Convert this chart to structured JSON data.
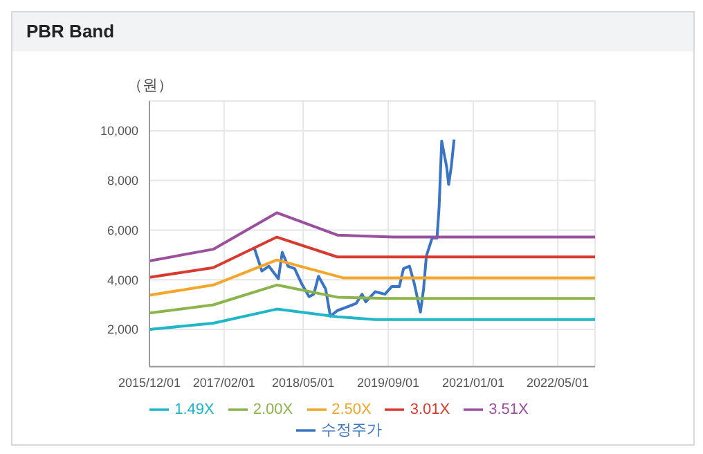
{
  "chart_data": {
    "type": "line",
    "title": "PBR Band",
    "ylabel": "（원）",
    "xlim": [
      "2015-12-01",
      "2022-12-01"
    ],
    "xticks": [
      {
        "value": "2015-12-01",
        "label": "2015/12/01"
      },
      {
        "value": "2017-02-01",
        "label": "2017/02/01"
      },
      {
        "value": "2018-05-01",
        "label": "2018/05/01"
      },
      {
        "value": "2019-09-01",
        "label": "2019/09/01"
      },
      {
        "value": "2021-01-01",
        "label": "2021/01/01"
      },
      {
        "value": "2022-05-01",
        "label": "2022/05/01"
      }
    ],
    "ylim": [
      500,
      11200
    ],
    "yticks": [
      {
        "value": 2000,
        "label": "2,000"
      },
      {
        "value": 4000,
        "label": "4,000"
      },
      {
        "value": 6000,
        "label": "6,000"
      },
      {
        "value": 8000,
        "label": "8,000"
      },
      {
        "value": 10000,
        "label": "10,000"
      }
    ],
    "grid": true,
    "legend": "bottom",
    "marker": "none",
    "line_style": "solid",
    "series": [
      {
        "name": "수정주가",
        "color": "#3a74c4",
        "x": [
          "2017-07-25",
          "2017-09-06",
          "2017-10-16",
          "2017-12-10",
          "2018-01-01",
          "2018-02-03",
          "2018-03-13",
          "2018-04-23",
          "2018-06-04",
          "2018-07-01",
          "2018-07-28",
          "2018-09-07",
          "2018-10-04",
          "2018-11-13",
          "2019-01-07",
          "2019-03-01",
          "2019-04-04",
          "2019-04-25",
          "2019-06-19",
          "2019-08-13",
          "2019-09-22",
          "2019-11-04",
          "2019-11-28",
          "2020-01-01",
          "2020-01-28",
          "2020-03-04",
          "2020-03-22",
          "2020-04-07",
          "2020-05-10",
          "2020-06-07",
          "2020-06-19",
          "2020-07-04",
          "2020-08-01",
          "2020-08-13",
          "2020-08-28",
          "2020-09-13"
        ],
        "values": [
          5270,
          4350,
          4550,
          4040,
          5110,
          4550,
          4450,
          3830,
          3320,
          3420,
          4140,
          3630,
          2530,
          2760,
          2900,
          3050,
          3420,
          3110,
          3520,
          3420,
          3730,
          3730,
          4450,
          4550,
          3870,
          2700,
          3630,
          4960,
          5680,
          5680,
          6920,
          9590,
          8560,
          7840,
          8560,
          9650
        ]
      },
      {
        "name": "1.49X",
        "color": "#1fb6c8",
        "x": [
          "2015-12-01",
          "2016-12-01",
          "2017-12-01",
          "2018-11-13",
          "2019-06-19",
          "2022-12-01"
        ],
        "values": [
          2000,
          2250,
          2820,
          2510,
          2400,
          2400
        ]
      },
      {
        "name": "2.00X",
        "color": "#8bb54b",
        "x": [
          "2015-12-01",
          "2016-12-01",
          "2017-12-01",
          "2018-11-13",
          "2019-09-01",
          "2022-12-01"
        ],
        "values": [
          2660,
          2990,
          3790,
          3300,
          3250,
          3250
        ]
      },
      {
        "name": "2.50X",
        "color": "#f4a62a",
        "x": [
          "2015-12-01",
          "2016-12-01",
          "2017-12-01",
          "2018-12-15",
          "2019-09-01",
          "2022-12-01"
        ],
        "values": [
          3380,
          3790,
          4800,
          4080,
          4080,
          4080
        ]
      },
      {
        "name": "3.01X",
        "color": "#d93a2f",
        "x": [
          "2015-12-01",
          "2016-12-01",
          "2017-12-01",
          "2018-11-13",
          "2019-09-01",
          "2022-12-01"
        ],
        "values": [
          4100,
          4490,
          5720,
          4920,
          4920,
          4920
        ]
      },
      {
        "name": "3.51X",
        "color": "#9a4f9f",
        "x": [
          "2015-12-01",
          "2016-12-01",
          "2017-12-01",
          "2018-11-13",
          "2019-10-01",
          "2022-12-01"
        ],
        "values": [
          4760,
          5230,
          6700,
          5800,
          5720,
          5720
        ]
      }
    ]
  }
}
